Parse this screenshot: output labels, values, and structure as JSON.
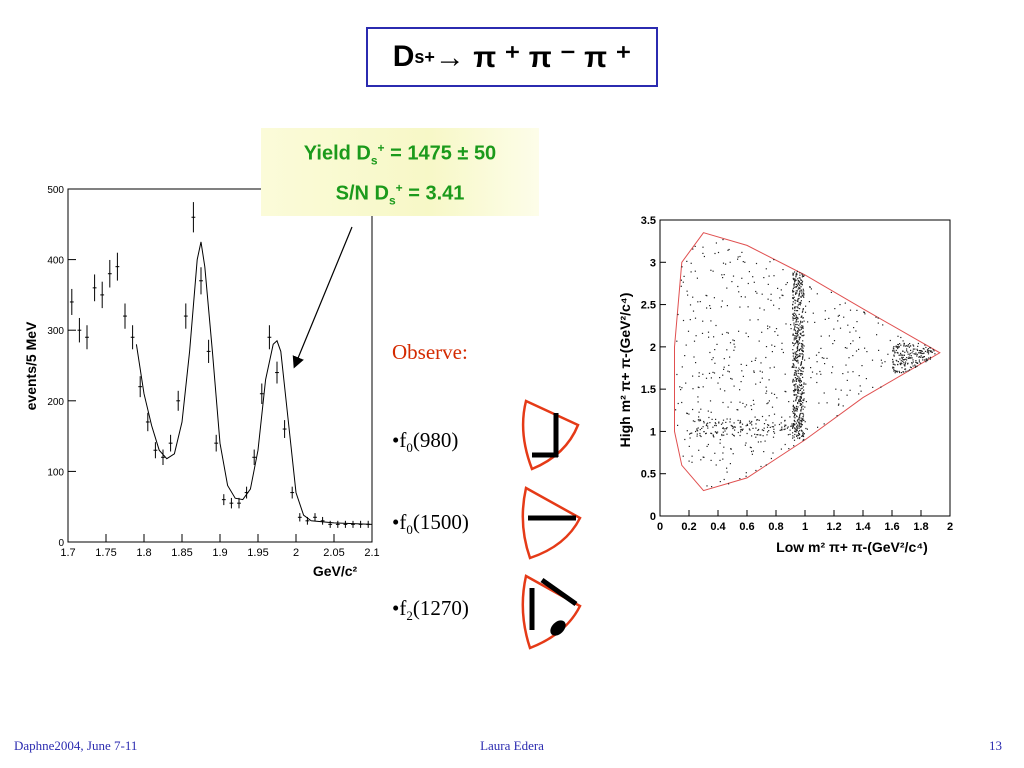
{
  "slide": {
    "title": {
      "base": "D",
      "sub": "s",
      "sup": "+",
      "rest": "→ π ⁺ π ⁻ π ⁺"
    },
    "yield_line": {
      "prefix": "Yield D",
      "sub": "s",
      "sup": "+",
      "rest": " = 1475 ± 50"
    },
    "sn_line": {
      "prefix": "S/N D",
      "sub": "s",
      "sup": "+",
      "rest": " = 3.41"
    },
    "observe_label": "Observe:",
    "bullets": [
      {
        "bullet": "•",
        "base": "f",
        "sub": "0",
        "rest": "(980)"
      },
      {
        "bullet": "•",
        "base": "f",
        "sub": "0",
        "rest": "(1500)"
      },
      {
        "bullet": "•",
        "base": "f",
        "sub": "2",
        "rest": "(1270)"
      }
    ],
    "footer_left": "Daphne2004, June 7-11",
    "footer_center": "Laura Edera",
    "footer_right": "13"
  },
  "colors": {
    "title_border": "#2b2bb0",
    "yield_text": "#1b9a1b",
    "observe_text": "#d42a00",
    "footer_text": "#2b2bb0",
    "boundary": "#e05050"
  },
  "chart_data": [
    {
      "type": "line",
      "ylabel": "events/5 MeV",
      "xlabel": "GeV/c²",
      "xlim": [
        1.7,
        2.1
      ],
      "ylim": [
        0,
        500
      ],
      "x_ticks": [
        "1.7",
        "1.75",
        "1.8",
        "1.85",
        "1.9",
        "1.95",
        "2",
        "2.05",
        "2.1"
      ],
      "y_ticks": [
        "0",
        "100",
        "200",
        "300",
        "400",
        "500"
      ],
      "x": [
        1.705,
        1.715,
        1.725,
        1.735,
        1.745,
        1.755,
        1.765,
        1.775,
        1.785,
        1.795,
        1.805,
        1.815,
        1.825,
        1.835,
        1.845,
        1.855,
        1.865,
        1.875,
        1.885,
        1.895,
        1.905,
        1.915,
        1.925,
        1.935,
        1.945,
        1.955,
        1.965,
        1.975,
        1.985,
        1.995,
        2.005,
        2.015,
        2.025,
        2.035,
        2.045,
        2.055,
        2.065,
        2.075,
        2.085,
        2.095
      ],
      "values": [
        340,
        300,
        290,
        360,
        350,
        380,
        390,
        320,
        290,
        220,
        170,
        130,
        120,
        140,
        200,
        320,
        460,
        370,
        270,
        140,
        60,
        55,
        55,
        70,
        120,
        210,
        290,
        240,
        160,
        70,
        35,
        30,
        35,
        30,
        25,
        25,
        25,
        25,
        25,
        25
      ],
      "fit_curve": [
        [
          1.79,
          280
        ],
        [
          1.8,
          210
        ],
        [
          1.81,
          165
        ],
        [
          1.82,
          130
        ],
        [
          1.83,
          118
        ],
        [
          1.84,
          125
        ],
        [
          1.85,
          170
        ],
        [
          1.86,
          270
        ],
        [
          1.87,
          400
        ],
        [
          1.875,
          425
        ],
        [
          1.88,
          390
        ],
        [
          1.89,
          270
        ],
        [
          1.9,
          140
        ],
        [
          1.91,
          80
        ],
        [
          1.92,
          62
        ],
        [
          1.93,
          60
        ],
        [
          1.94,
          75
        ],
        [
          1.95,
          130
        ],
        [
          1.96,
          230
        ],
        [
          1.97,
          280
        ],
        [
          1.975,
          285
        ],
        [
          1.98,
          270
        ],
        [
          1.99,
          170
        ],
        [
          2.0,
          70
        ],
        [
          2.01,
          38
        ],
        [
          2.02,
          30
        ],
        [
          2.05,
          27
        ],
        [
          2.1,
          25
        ]
      ]
    },
    {
      "type": "scatter",
      "xlabel": "Low m² π+ π-(GeV²/c⁴)",
      "ylabel": "High m² π+ π-(GeV²/c⁴)",
      "xlim": [
        0,
        2
      ],
      "ylim": [
        0,
        3.5
      ],
      "x_ticks": [
        "0",
        "0.2",
        "0.4",
        "0.6",
        "0.8",
        "1",
        "1.2",
        "1.4",
        "1.6",
        "1.8",
        "2"
      ],
      "y_ticks": [
        "0",
        "0.5",
        "1",
        "1.5",
        "2",
        "2.5",
        "3",
        "3.5"
      ],
      "boundary": [
        [
          0.3,
          3.35
        ],
        [
          0.15,
          3.0
        ],
        [
          0.1,
          2.0
        ],
        [
          0.1,
          1.0
        ],
        [
          0.15,
          0.6
        ],
        [
          0.3,
          0.3
        ],
        [
          0.6,
          0.45
        ],
        [
          1.0,
          0.9
        ],
        [
          1.4,
          1.4
        ],
        [
          1.93,
          1.93
        ],
        [
          1.4,
          2.45
        ],
        [
          1.0,
          2.85
        ],
        [
          0.6,
          3.2
        ],
        [
          0.3,
          3.35
        ]
      ]
    }
  ]
}
